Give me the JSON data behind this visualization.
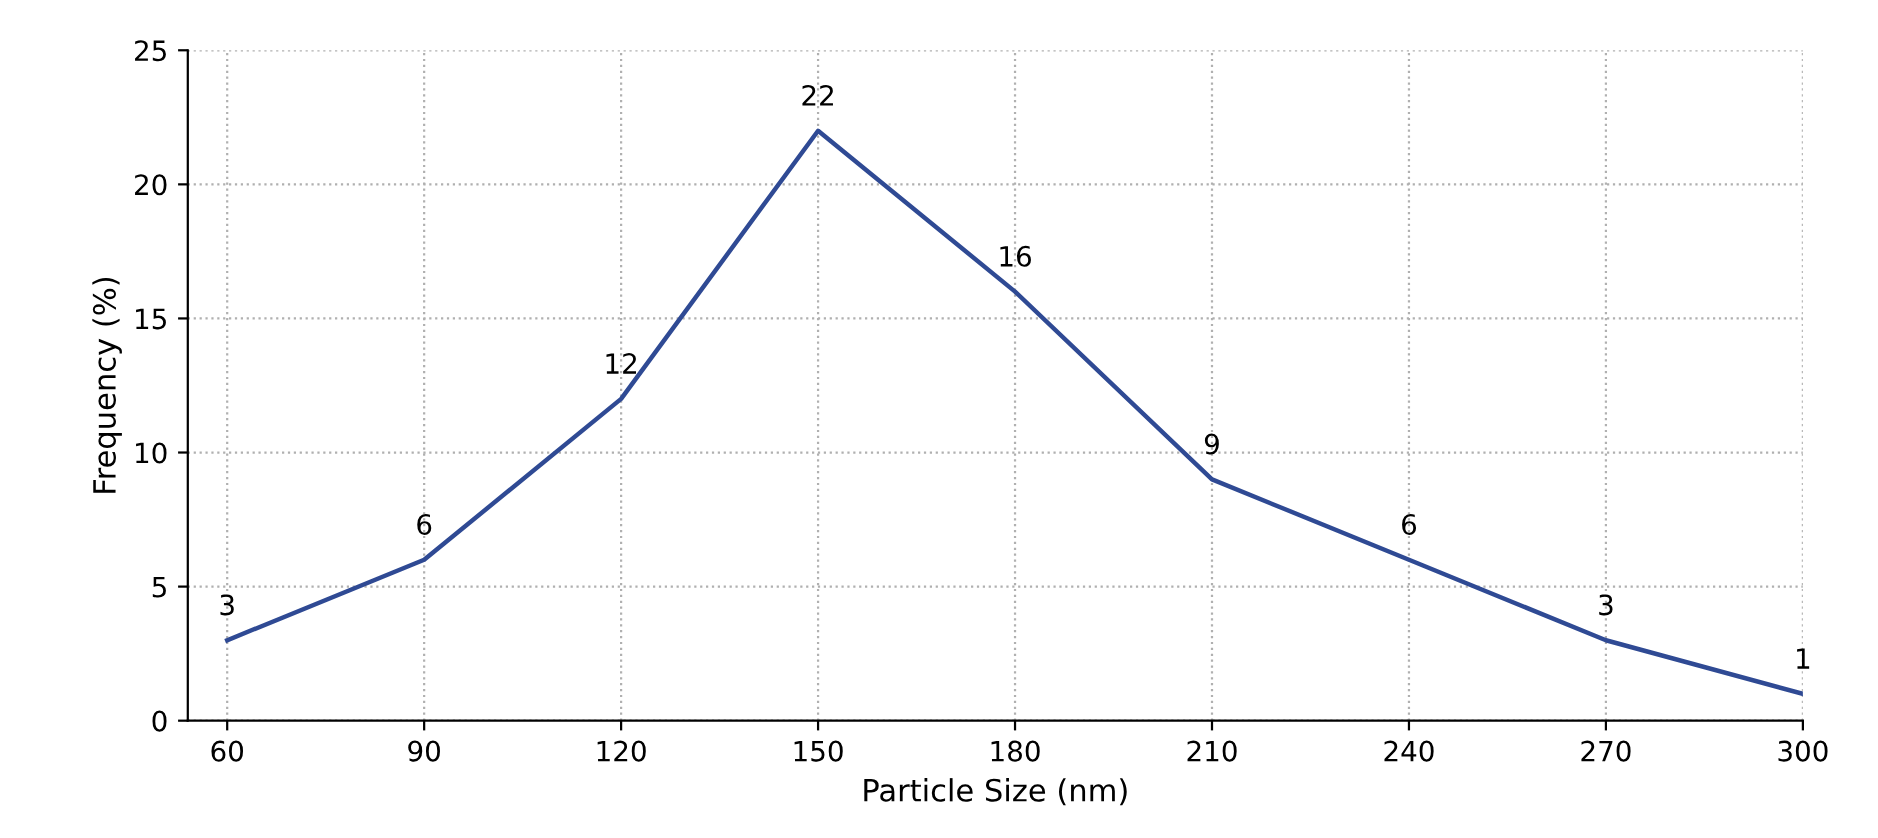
{
  "chart_data": {
    "type": "line",
    "xlabel": "Particle Size (nm)",
    "ylabel": "Frequency (%)",
    "x": [
      60,
      90,
      120,
      150,
      180,
      210,
      240,
      270,
      300
    ],
    "series": [
      {
        "color": "#2f4a94",
        "values": [
          3,
          6,
          12,
          22,
          16,
          9,
          6,
          3,
          1
        ]
      }
    ],
    "data_labels": true,
    "xlim": [
      54,
      300
    ],
    "ylim": [
      0,
      25
    ],
    "xticks": [
      60,
      90,
      120,
      150,
      180,
      210,
      240,
      270,
      300
    ],
    "yticks": [
      0,
      5,
      10,
      15,
      20,
      25
    ],
    "grid": true,
    "marker": "none",
    "line_style": "solid"
  }
}
